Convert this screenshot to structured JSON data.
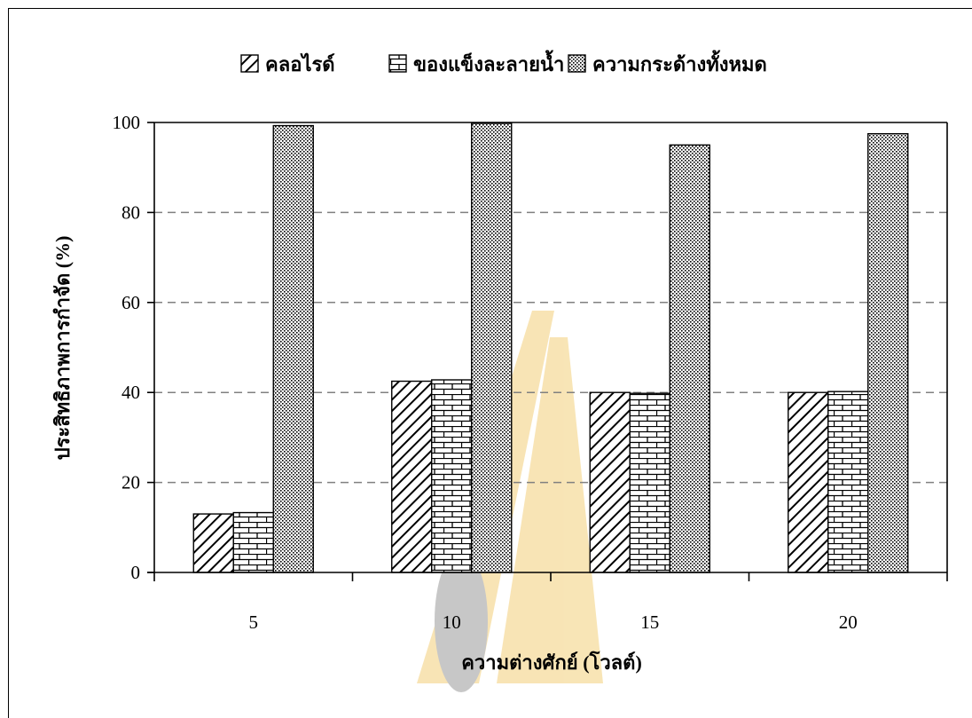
{
  "chart_data": {
    "type": "bar",
    "categories": [
      "5",
      "10",
      "15",
      "20"
    ],
    "series": [
      {
        "name": "คลอไรด์",
        "pattern": "diagonal",
        "values": [
          13,
          42.5,
          40,
          40
        ]
      },
      {
        "name": "ของแข็งละลายน้ำ",
        "pattern": "brick",
        "values": [
          13.3,
          42.8,
          39.8,
          40.2
        ]
      },
      {
        "name": "ความกระด้างทั้งหมด",
        "pattern": "dots",
        "values": [
          99.3,
          99.8,
          95,
          97.5
        ]
      }
    ],
    "xlabel": "ความต่างศักย์ (โวลต์)",
    "ylabel": "ประสิทธิภาพการกำจัด (%)",
    "ylim": [
      0,
      100
    ],
    "yticks": [
      0,
      20,
      40,
      60,
      80,
      100
    ],
    "grid": "horizontal-dashed",
    "legend_position": "top"
  },
  "colors": {
    "bar_fill": "#ffffff",
    "bar_stroke": "#000000",
    "grid": "#808080",
    "watermark": "#f0c05a"
  }
}
